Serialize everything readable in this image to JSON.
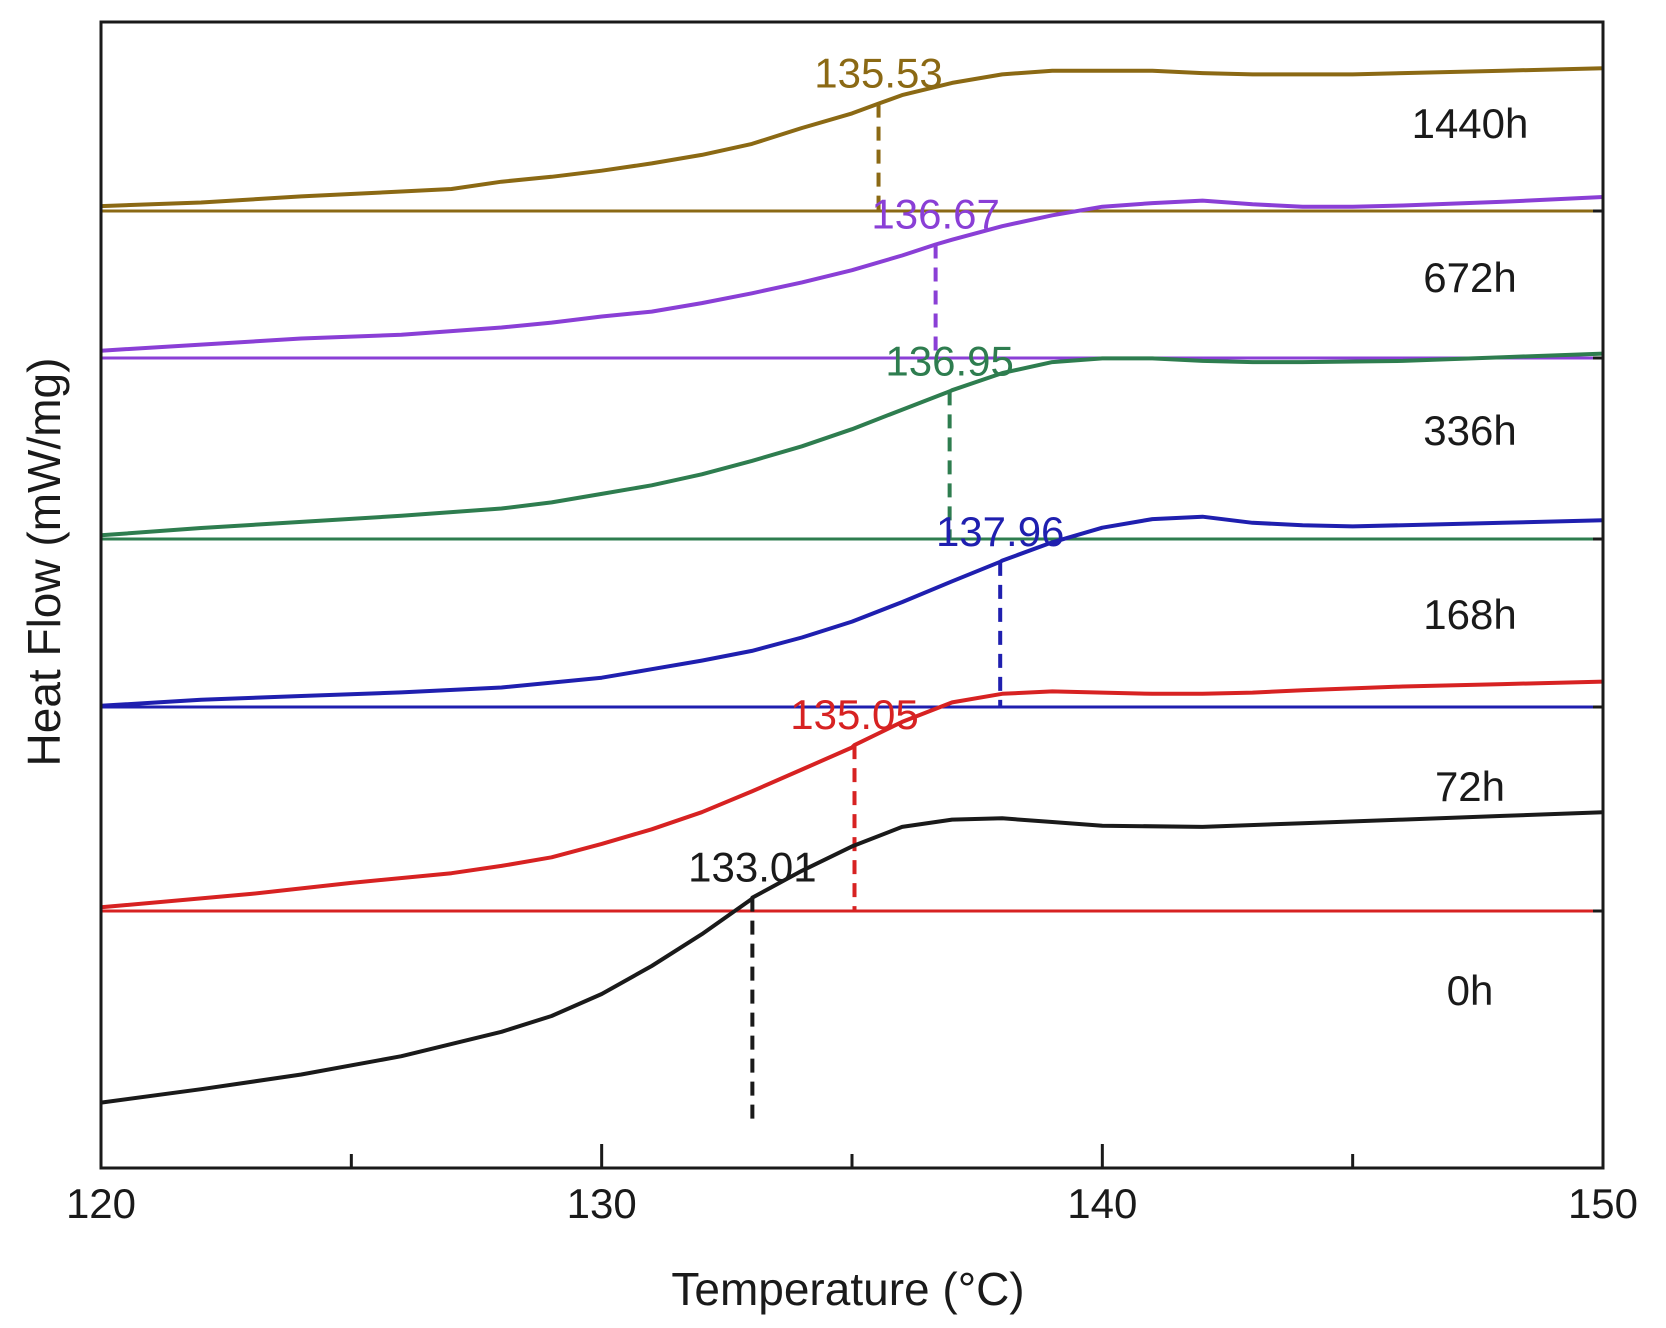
{
  "chart_data": {
    "type": "line",
    "title": "",
    "xlabel": "Temperature (°C)",
    "ylabel": "Heat Flow (mW/mg)",
    "xlim": [
      120,
      150
    ],
    "x_ticks": [
      {
        "value": 120,
        "label": "120"
      },
      {
        "value": 130,
        "label": "130"
      },
      {
        "value": 140,
        "label": "140"
      },
      {
        "value": 150,
        "label": "150"
      }
    ],
    "x_minor_ticks": [
      125,
      135,
      145
    ],
    "y_units": "arbitrary (stacked, no scale)",
    "grid": false,
    "legend": "none",
    "series": [
      {
        "name": "1440h",
        "color": "#8B6914",
        "baseline": 5,
        "tg": 135.53,
        "tg_label": "135.53",
        "points": [
          [
            120,
            0.04
          ],
          [
            122,
            0.07
          ],
          [
            124,
            0.12
          ],
          [
            126,
            0.16
          ],
          [
            127,
            0.18
          ],
          [
            128,
            0.24
          ],
          [
            129,
            0.28
          ],
          [
            130,
            0.33
          ],
          [
            131,
            0.39
          ],
          [
            132,
            0.46
          ],
          [
            133,
            0.55
          ],
          [
            134,
            0.68
          ],
          [
            135,
            0.8
          ],
          [
            135.53,
            0.88
          ],
          [
            136,
            0.95
          ],
          [
            137,
            1.05
          ],
          [
            138,
            1.12
          ],
          [
            139,
            1.15
          ],
          [
            140,
            1.15
          ],
          [
            141,
            1.15
          ],
          [
            142,
            1.13
          ],
          [
            143,
            1.12
          ],
          [
            144,
            1.12
          ],
          [
            145,
            1.12
          ],
          [
            146,
            1.13
          ],
          [
            148,
            1.15
          ],
          [
            150,
            1.17
          ]
        ]
      },
      {
        "name": "672h",
        "color": "#8A3FD6",
        "baseline": 4,
        "tg": 136.67,
        "tg_label": "136.67",
        "points": [
          [
            120,
            0.06
          ],
          [
            122,
            0.11
          ],
          [
            124,
            0.16
          ],
          [
            126,
            0.19
          ],
          [
            128,
            0.25
          ],
          [
            129,
            0.29
          ],
          [
            130,
            0.34
          ],
          [
            131,
            0.38
          ],
          [
            132,
            0.45
          ],
          [
            133,
            0.53
          ],
          [
            134,
            0.62
          ],
          [
            135,
            0.72
          ],
          [
            136,
            0.84
          ],
          [
            136.67,
            0.93
          ],
          [
            137,
            0.97
          ],
          [
            138,
            1.08
          ],
          [
            139,
            1.17
          ],
          [
            140,
            1.24
          ],
          [
            141,
            1.27
          ],
          [
            142,
            1.29
          ],
          [
            143,
            1.26
          ],
          [
            144,
            1.24
          ],
          [
            145,
            1.24
          ],
          [
            146,
            1.25
          ],
          [
            148,
            1.28
          ],
          [
            150,
            1.32
          ]
        ]
      },
      {
        "name": "336h",
        "color": "#2E7D4F",
        "baseline": 3,
        "tg": 136.95,
        "tg_label": "136.95",
        "points": [
          [
            120,
            0.03
          ],
          [
            122,
            0.09
          ],
          [
            124,
            0.14
          ],
          [
            126,
            0.19
          ],
          [
            128,
            0.25
          ],
          [
            129,
            0.3
          ],
          [
            130,
            0.37
          ],
          [
            131,
            0.44
          ],
          [
            132,
            0.53
          ],
          [
            133,
            0.64
          ],
          [
            134,
            0.76
          ],
          [
            135,
            0.9
          ],
          [
            136,
            1.06
          ],
          [
            136.95,
            1.21
          ],
          [
            137,
            1.22
          ],
          [
            138,
            1.36
          ],
          [
            139,
            1.45
          ],
          [
            140,
            1.48
          ],
          [
            141,
            1.48
          ],
          [
            142,
            1.46
          ],
          [
            143,
            1.45
          ],
          [
            144,
            1.45
          ],
          [
            146,
            1.46
          ],
          [
            148,
            1.49
          ],
          [
            150,
            1.52
          ]
        ]
      },
      {
        "name": "168h",
        "color": "#1F1FAF",
        "baseline": 2,
        "tg": 137.96,
        "tg_label": "137.96",
        "points": [
          [
            120,
            0.01
          ],
          [
            122,
            0.06
          ],
          [
            124,
            0.09
          ],
          [
            126,
            0.12
          ],
          [
            128,
            0.16
          ],
          [
            130,
            0.24
          ],
          [
            131,
            0.31
          ],
          [
            132,
            0.38
          ],
          [
            133,
            0.46
          ],
          [
            134,
            0.57
          ],
          [
            135,
            0.7
          ],
          [
            136,
            0.86
          ],
          [
            137,
            1.03
          ],
          [
            137.96,
            1.19
          ],
          [
            138,
            1.2
          ],
          [
            139,
            1.35
          ],
          [
            140,
            1.47
          ],
          [
            141,
            1.54
          ],
          [
            142,
            1.56
          ],
          [
            143,
            1.51
          ],
          [
            144,
            1.49
          ],
          [
            145,
            1.48
          ],
          [
            146,
            1.49
          ],
          [
            148,
            1.51
          ],
          [
            150,
            1.53
          ]
        ]
      },
      {
        "name": "72h",
        "color": "#D72222",
        "baseline": 1,
        "tg": 135.05,
        "tg_label": "135.05",
        "points": [
          [
            120,
            0.03
          ],
          [
            123,
            0.14
          ],
          [
            125,
            0.23
          ],
          [
            127,
            0.31
          ],
          [
            128,
            0.37
          ],
          [
            129,
            0.44
          ],
          [
            130,
            0.55
          ],
          [
            131,
            0.67
          ],
          [
            132,
            0.81
          ],
          [
            133,
            0.98
          ],
          [
            134,
            1.16
          ],
          [
            135,
            1.34
          ],
          [
            135.05,
            1.36
          ],
          [
            136,
            1.55
          ],
          [
            137,
            1.71
          ],
          [
            138,
            1.78
          ],
          [
            139,
            1.8
          ],
          [
            140,
            1.79
          ],
          [
            141,
            1.78
          ],
          [
            142,
            1.78
          ],
          [
            143,
            1.79
          ],
          [
            144,
            1.81
          ],
          [
            146,
            1.84
          ],
          [
            148,
            1.86
          ],
          [
            150,
            1.88
          ]
        ]
      },
      {
        "name": "0h",
        "color": "#1A1A1A",
        "baseline": 0,
        "tg": 133.01,
        "tg_label": "133.01",
        "points": [
          [
            120,
            0.2
          ],
          [
            122,
            0.31
          ],
          [
            124,
            0.43
          ],
          [
            126,
            0.58
          ],
          [
            128,
            0.78
          ],
          [
            129,
            0.91
          ],
          [
            130,
            1.09
          ],
          [
            131,
            1.32
          ],
          [
            132,
            1.58
          ],
          [
            133,
            1.87
          ],
          [
            133.01,
            1.88
          ],
          [
            134,
            2.1
          ],
          [
            135,
            2.3
          ],
          [
            136,
            2.46
          ],
          [
            137,
            2.52
          ],
          [
            138,
            2.53
          ],
          [
            139,
            2.5
          ],
          [
            140,
            2.47
          ],
          [
            142,
            2.46
          ],
          [
            144,
            2.49
          ],
          [
            146,
            2.52
          ],
          [
            148,
            2.55
          ],
          [
            150,
            2.58
          ]
        ]
      }
    ]
  }
}
